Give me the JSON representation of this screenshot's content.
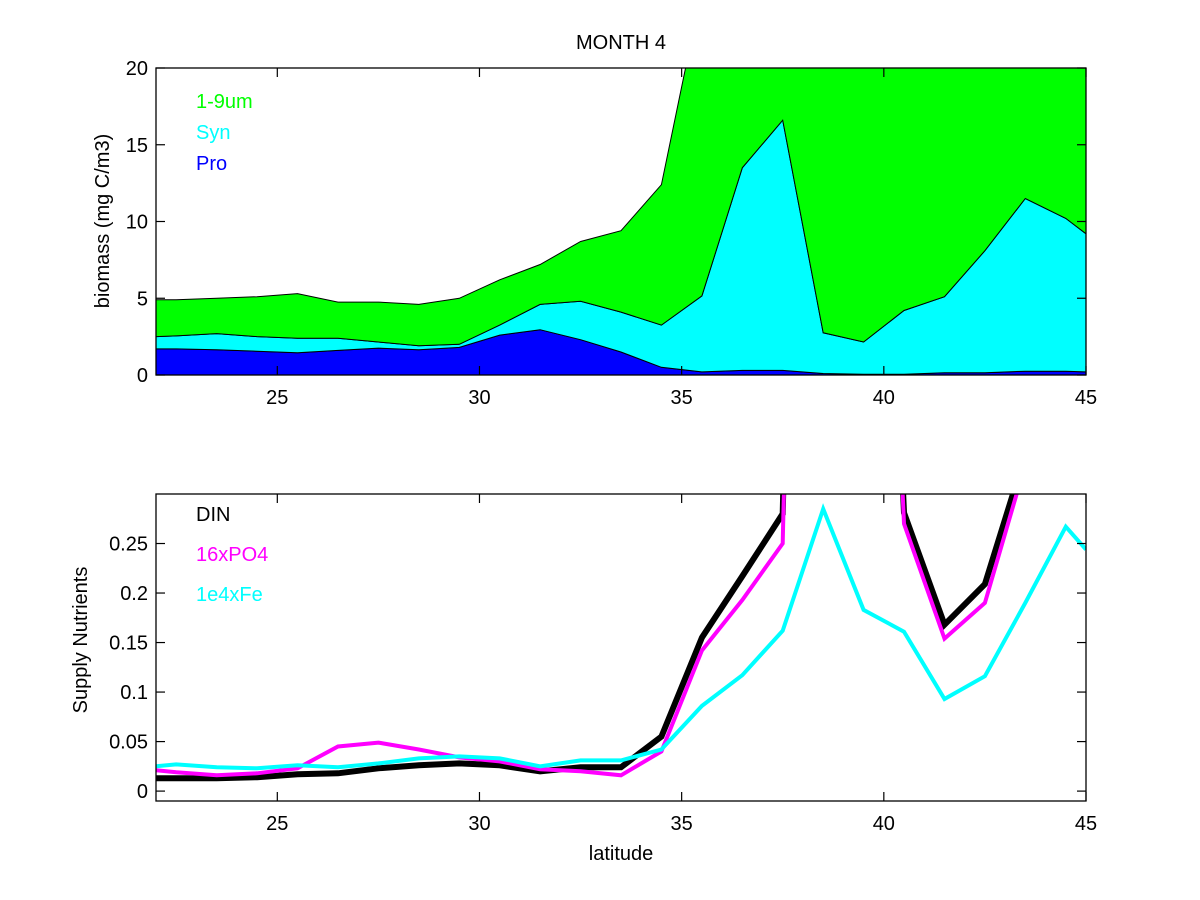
{
  "chart_data": [
    {
      "type": "area",
      "stacked": true,
      "title": "MONTH 4",
      "xlabel": "",
      "ylabel": "biomass (mg C/m3)",
      "xlim": [
        22,
        45
      ],
      "ylim": [
        0,
        20
      ],
      "xticks": [
        25,
        30,
        35,
        40,
        45
      ],
      "yticks": [
        0,
        5,
        10,
        15,
        20
      ],
      "grid": false,
      "legend_placement": "top-left",
      "x": [
        22,
        22.5,
        23.5,
        24.5,
        25.5,
        26.5,
        27.5,
        28.5,
        29.5,
        30.5,
        31.5,
        32.5,
        33.5,
        34.5,
        35.5,
        36.5,
        37.5,
        38.5,
        39.5,
        40.5,
        41.5,
        42.5,
        43.5,
        44.5,
        45
      ],
      "series": [
        {
          "name": "Pro",
          "color": "#0000ff",
          "values": [
            1.7,
            1.7,
            1.65,
            1.55,
            1.45,
            1.6,
            1.75,
            1.65,
            1.8,
            2.6,
            2.95,
            2.3,
            1.5,
            0.5,
            0.2,
            0.3,
            0.3,
            0.1,
            0.05,
            0.05,
            0.15,
            0.15,
            0.25,
            0.25,
            0.2
          ]
        },
        {
          "name": "Syn",
          "color": "#00ffff",
          "values": [
            0.8,
            0.85,
            1.05,
            0.95,
            0.95,
            0.8,
            0.4,
            0.25,
            0.2,
            0.65,
            1.65,
            2.5,
            2.6,
            2.75,
            4.95,
            13.2,
            16.3,
            2.65,
            2.1,
            4.15,
            4.95,
            7.95,
            11.25,
            9.95,
            9.0
          ]
        },
        {
          "name": "1-9um",
          "color": "#00ff00",
          "values": [
            2.4,
            2.35,
            2.3,
            2.6,
            2.9,
            2.35,
            2.6,
            2.7,
            3.0,
            2.95,
            2.6,
            3.9,
            5.3,
            9.15,
            20,
            20,
            20,
            20,
            20,
            20,
            20,
            20,
            20,
            20,
            20
          ]
        }
      ],
      "cumulative_totals_note": "total clipped at axis top beyond 35"
    },
    {
      "type": "line",
      "title": "",
      "xlabel": "latitude",
      "ylabel": "Supply Nutrients",
      "xlim": [
        22,
        45
      ],
      "ylim": [
        -0.01,
        0.3
      ],
      "xticks": [
        25,
        30,
        35,
        40,
        45
      ],
      "yticks": [
        0,
        0.05,
        0.1,
        0.15,
        0.2,
        0.25
      ],
      "ytick_labels": [
        "0",
        "0.05",
        "0.1",
        "0.15",
        "0.2",
        "0.25"
      ],
      "grid": false,
      "legend_placement": "top-left",
      "x": [
        22,
        22.5,
        23.5,
        24.5,
        25.5,
        26.5,
        27.5,
        28.5,
        29.5,
        30.5,
        31.5,
        32.5,
        33.5,
        34.5,
        35.5,
        36.5,
        37.5,
        38.5,
        39.5,
        40.5,
        41.5,
        42.5,
        43.5,
        44.5,
        45
      ],
      "series": [
        {
          "name": "DIN",
          "color": "#000000",
          "values": [
            0.013,
            0.013,
            0.013,
            0.014,
            0.017,
            0.018,
            0.023,
            0.026,
            0.028,
            0.026,
            0.02,
            0.024,
            0.024,
            0.055,
            0.155,
            0.217,
            0.28,
            2.0,
            1.2,
            0.281,
            0.168,
            0.209,
            0.34,
            0.6,
            0.7
          ]
        },
        {
          "name": "16xPO4",
          "color": "#ff00ff",
          "values": [
            0.021,
            0.019,
            0.016,
            0.018,
            0.023,
            0.045,
            0.049,
            0.042,
            0.034,
            0.03,
            0.022,
            0.02,
            0.016,
            0.04,
            0.142,
            0.193,
            0.25,
            2.0,
            1.2,
            0.27,
            0.154,
            0.19,
            0.33,
            0.6,
            0.7
          ]
        },
        {
          "name": "1e4xFe",
          "color": "#00ffff",
          "values": [
            0.025,
            0.027,
            0.024,
            0.023,
            0.026,
            0.024,
            0.028,
            0.033,
            0.035,
            0.033,
            0.025,
            0.031,
            0.031,
            0.042,
            0.086,
            0.117,
            0.162,
            0.285,
            0.183,
            0.161,
            0.093,
            0.116,
            0.19,
            0.267,
            0.244
          ]
        }
      ]
    }
  ]
}
